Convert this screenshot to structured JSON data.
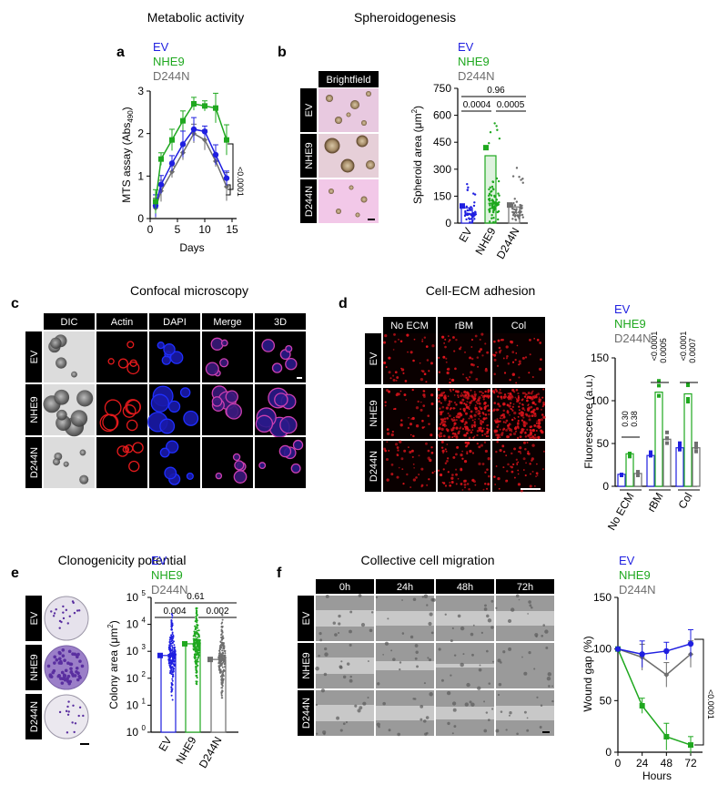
{
  "colors": {
    "ev": "#1f1fe0",
    "nhe9": "#1fa81f",
    "d244n": "#6e6e6e",
    "red": "#e31a1c",
    "blue": "#1f2fff",
    "magenta": "#cc3fb0"
  },
  "panels": {
    "a": {
      "letter": "a",
      "heading": "Metabolic activity",
      "legend": [
        "EV",
        "NHE9",
        "D244N"
      ]
    },
    "b": {
      "letter": "b",
      "heading": "Spheroidogenesis",
      "legend": [
        "EV",
        "NHE9",
        "D244N"
      ],
      "image_header": "Brightfield",
      "row_labels": [
        "EV",
        "NHE9",
        "D244N"
      ]
    },
    "c": {
      "letter": "c",
      "heading": "Confocal microscopy",
      "col_headers": [
        "DIC",
        "Actin",
        "DAPI",
        "Merge",
        "3D"
      ],
      "row_labels": [
        "EV",
        "NHE9",
        "D244N"
      ]
    },
    "d": {
      "letter": "d",
      "heading": "Cell-ECM adhesion",
      "legend": [
        "EV",
        "NHE9",
        "D244N"
      ],
      "col_headers": [
        "No ECM",
        "rBM",
        "Col"
      ],
      "row_labels": [
        "EV",
        "NHE9",
        "D244N"
      ]
    },
    "e": {
      "letter": "e",
      "heading": "Clonogenicity potential",
      "legend": [
        "EV",
        "NHE9",
        "D244N"
      ],
      "row_labels": [
        "EV",
        "NHE9",
        "D244N"
      ]
    },
    "f": {
      "letter": "f",
      "heading": "Collective cell migration",
      "legend": [
        "EV",
        "NHE9",
        "D244N"
      ],
      "col_headers": [
        "0h",
        "24h",
        "48h",
        "72h"
      ],
      "row_labels": [
        "EV",
        "NHE9",
        "D244N"
      ]
    }
  },
  "chart_data": [
    {
      "id": "a",
      "type": "line",
      "xlabel": "Days",
      "ylabel": "MTS assay (Abs",
      "ylabel_sub": "490",
      "ylabel_end": ")",
      "xlim": [
        0,
        15
      ],
      "ylim": [
        0,
        3
      ],
      "xticks": [
        "0",
        "5",
        "10",
        "15"
      ],
      "yticks": [
        "0",
        "1",
        "2",
        "3"
      ],
      "series": [
        {
          "name": "EV",
          "x": [
            1,
            2,
            4,
            6,
            8,
            10,
            12,
            14
          ],
          "y": [
            0.3,
            0.8,
            1.3,
            1.75,
            2.1,
            2.05,
            1.5,
            0.95
          ]
        },
        {
          "name": "NHE9",
          "x": [
            1,
            2,
            4,
            6,
            8,
            10,
            12,
            14
          ],
          "y": [
            0.4,
            1.4,
            1.85,
            2.3,
            2.7,
            2.65,
            2.6,
            1.85
          ]
        },
        {
          "name": "D244N",
          "x": [
            1,
            2,
            4,
            6,
            8,
            10,
            12,
            14
          ],
          "y": [
            0.25,
            0.65,
            1.1,
            1.55,
            2.0,
            1.85,
            1.35,
            0.75
          ]
        }
      ],
      "annotations": [
        "<0.0001"
      ]
    },
    {
      "id": "b",
      "type": "bar",
      "ylabel": "Spheroid area (μm",
      "ylabel_sup": "2",
      "ylabel_end": ")",
      "categories": [
        "EV",
        "NHE9",
        "D244N"
      ],
      "values": [
        85,
        375,
        90
      ],
      "ylim": [
        0,
        750
      ],
      "yticks": [
        "0",
        "150",
        "300",
        "450",
        "600",
        "750"
      ],
      "annotations": [
        "0.96",
        "0.0004",
        "0.0005"
      ]
    },
    {
      "id": "d",
      "type": "bar",
      "ylabel": "Fluorescence (a.u.)",
      "categories": [
        "No ECM",
        "rBM",
        "Col"
      ],
      "series": [
        {
          "name": "EV",
          "values": [
            14,
            36,
            45
          ]
        },
        {
          "name": "NHE9",
          "values": [
            38,
            110,
            108
          ]
        },
        {
          "name": "D244N",
          "values": [
            15,
            55,
            45
          ]
        }
      ],
      "ylim": [
        0,
        150
      ],
      "yticks": [
        "0",
        "50",
        "100",
        "150"
      ],
      "annotations": [
        "0.30",
        "0.38",
        "<0.0001",
        "0.0005",
        "<0.0001",
        "0.0007"
      ]
    },
    {
      "id": "e",
      "type": "bar",
      "ylabel": "Colony area (μm",
      "ylabel_sup": "2",
      "ylabel_end": ")",
      "categories": [
        "EV",
        "NHE9",
        "D244N"
      ],
      "values": [
        700,
        1900,
        500
      ],
      "yscale": "log",
      "ylim": [
        1,
        100000
      ],
      "ytick_base": "10",
      "ytick_exps": [
        "0",
        "1",
        "2",
        "3",
        "4",
        "5"
      ],
      "annotations": [
        "0.61",
        "0.004",
        "0.002"
      ]
    },
    {
      "id": "f",
      "type": "line",
      "xlabel": "Hours",
      "ylabel": "Wound gap (%)",
      "xlim": [
        0,
        72
      ],
      "ylim": [
        0,
        150
      ],
      "xticks": [
        "0",
        "24",
        "48",
        "72"
      ],
      "yticks": [
        "0",
        "50",
        "100",
        "150"
      ],
      "series": [
        {
          "name": "EV",
          "x": [
            0,
            24,
            48,
            72
          ],
          "y": [
            100,
            95,
            98,
            105
          ]
        },
        {
          "name": "NHE9",
          "x": [
            0,
            24,
            48,
            72
          ],
          "y": [
            100,
            45,
            15,
            7
          ]
        },
        {
          "name": "D244N",
          "x": [
            0,
            24,
            48,
            72
          ],
          "y": [
            100,
            92,
            75,
            95
          ]
        }
      ],
      "annotations": [
        "<0.0001"
      ]
    }
  ]
}
